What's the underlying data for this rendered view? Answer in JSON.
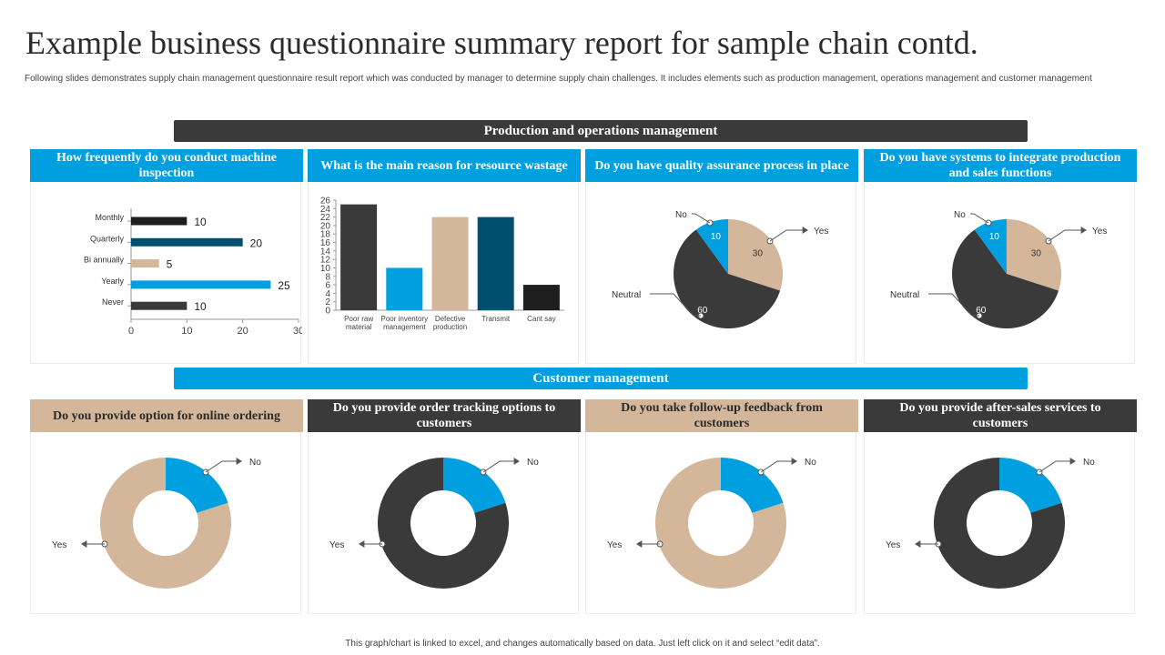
{
  "header": {
    "title": "Example business questionnaire summary report for sample chain contd.",
    "description": "Following slides demonstrates supply chain management questionnaire result report which was conducted by manager to determine supply chain challenges. It includes elements such as production management, operations management and customer management"
  },
  "sections": {
    "production": "Production and operations management",
    "customer": "Customer management"
  },
  "footer": "This graph/chart is linked to excel, and changes automatically based on data. Just left click on it and select “edit data”.",
  "colors": {
    "blue": "#00a0e0",
    "dark": "#3a3a3a",
    "tan": "#d4b79a",
    "navy": "#004f6e",
    "black": "#1e1e1e"
  },
  "chart_data": [
    {
      "type": "bar",
      "orientation": "horizontal",
      "title": "How frequently do you conduct machine inspection",
      "categories": [
        "Monthly",
        "Quarterly",
        "Bi annually",
        "Yearly",
        "Never"
      ],
      "values": [
        10,
        20,
        5,
        25,
        10
      ],
      "colors": [
        "#1e1e1e",
        "#004f6e",
        "#d4b79a",
        "#00a0e0",
        "#3a3a3a"
      ],
      "xlim": [
        0,
        30
      ],
      "xticks": [
        "0",
        "10",
        "20",
        "30"
      ],
      "data_labels": true
    },
    {
      "type": "bar",
      "title": "What is the main reason for resource wastage",
      "categories": [
        "Poor raw material",
        "Poor inventory management",
        "Defective production",
        "Transmit",
        "Cant say"
      ],
      "values": [
        25,
        10,
        22,
        22,
        6
      ],
      "colors": [
        "#3a3a3a",
        "#00a0e0",
        "#d4b79a",
        "#004f6e",
        "#1e1e1e"
      ],
      "ylim": [
        0,
        26
      ],
      "yticks": [
        "0",
        "2",
        "4",
        "6",
        "8",
        "10",
        "12",
        "14",
        "16",
        "18",
        "20",
        "22",
        "24",
        "26"
      ]
    },
    {
      "type": "pie",
      "title": "Do you have quality assurance process in place",
      "slices": [
        {
          "label": "Yes",
          "value": 30,
          "color": "#d4b79a"
        },
        {
          "label": "Neutral",
          "value": 60,
          "color": "#3a3a3a"
        },
        {
          "label": "No",
          "value": 10,
          "color": "#00a0e0"
        }
      ]
    },
    {
      "type": "pie",
      "title": "Do you have systems to integrate production and sales functions",
      "slices": [
        {
          "label": "Yes",
          "value": 30,
          "color": "#d4b79a"
        },
        {
          "label": "Neutral",
          "value": 60,
          "color": "#3a3a3a"
        },
        {
          "label": "No",
          "value": 10,
          "color": "#00a0e0"
        }
      ]
    },
    {
      "type": "donut",
      "title": "Do you provide option for online ordering",
      "slices": [
        {
          "label": "No",
          "value": 20,
          "color": "#00a0e0"
        },
        {
          "label": "Yes",
          "value": 80,
          "color": "#d4b79a"
        }
      ]
    },
    {
      "type": "donut",
      "title": "Do you provide order tracking options to customers",
      "slices": [
        {
          "label": "No",
          "value": 20,
          "color": "#00a0e0"
        },
        {
          "label": "Yes",
          "value": 80,
          "color": "#3a3a3a"
        }
      ]
    },
    {
      "type": "donut",
      "title": "Do you take follow-up feedback from customers",
      "slices": [
        {
          "label": "No",
          "value": 20,
          "color": "#00a0e0"
        },
        {
          "label": "Yes",
          "value": 80,
          "color": "#d4b79a"
        }
      ]
    },
    {
      "type": "donut",
      "title": "Do you provide after-sales services to customers",
      "slices": [
        {
          "label": "No",
          "value": 20,
          "color": "#00a0e0"
        },
        {
          "label": "Yes",
          "value": 80,
          "color": "#3a3a3a"
        }
      ]
    }
  ]
}
